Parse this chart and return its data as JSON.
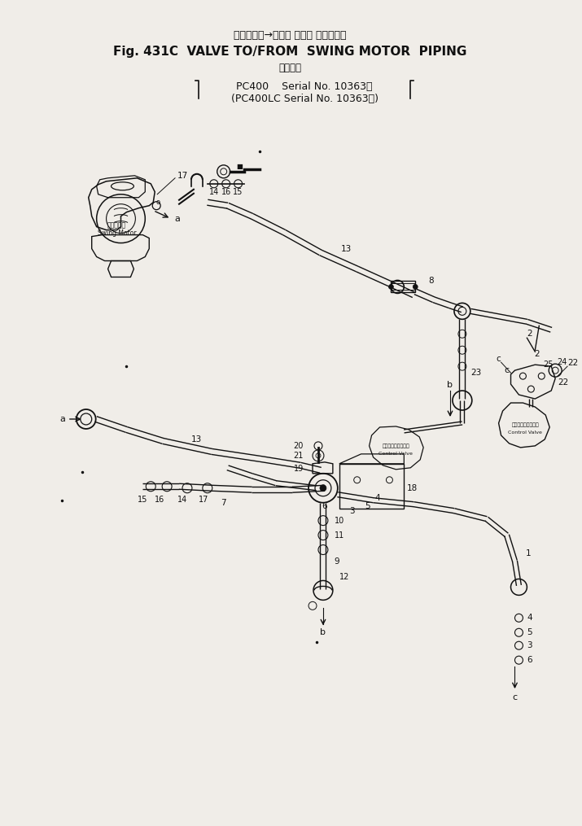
{
  "title_jp": "バルブ　　→　旋回 モータ パイピング",
  "title_en": "Fig. 431C  VALVE TO/FROM  SWING MOTOR  PIPING",
  "sub_jp": "適用号機",
  "sub1": "PC400    Serial No. 10363～",
  "sub2": "(PC400LC Serial No. 10363～)",
  "bg": "#f0ede8",
  "lc": "#111111",
  "fig_w": 7.15,
  "fig_h": 10.15,
  "dpi": 100
}
